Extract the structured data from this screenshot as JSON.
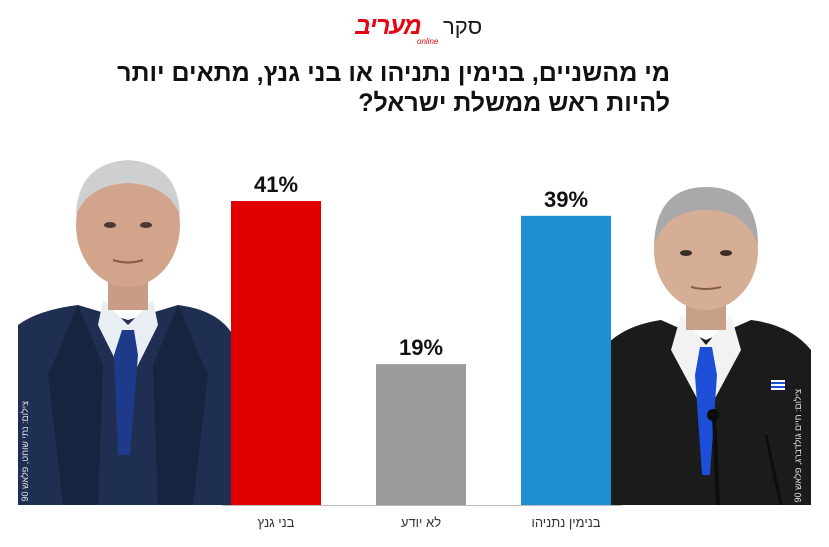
{
  "header": {
    "brand": "מעריב",
    "brand_sub": "online",
    "label": "סקר"
  },
  "title_lines": [
    "מי מהשניים, בנימין נתניהו או בני גנץ, מתאים יותר",
    "להיות ראש ממשלת ישראל?"
  ],
  "photos": {
    "left_credit": "צילום: נתי שוחט, פלאש 90",
    "right_credit": "צילום: חיים גולדברג, פלאש 90"
  },
  "colors": {
    "gantz": "#e00000",
    "unknown": "#9b9b9b",
    "netanyahu": "#1f8fd2"
  },
  "chart_data": {
    "type": "bar",
    "title": "מי מהשניים, בנימין נתניהו או בני גנץ, מתאים יותר להיות ראש ממשלת ישראל?",
    "categories": [
      "בני גנץ",
      "לא יודע",
      "בנימין נתניהו"
    ],
    "values": [
      41,
      19,
      39
    ],
    "value_labels": [
      "41%",
      "19%",
      "39%"
    ],
    "colors": [
      "#e00000",
      "#9b9b9b",
      "#1f8fd2"
    ],
    "unit": "%",
    "xlabel": "",
    "ylabel": "",
    "ylim": [
      0,
      41
    ],
    "grid": false,
    "legend": "none"
  }
}
